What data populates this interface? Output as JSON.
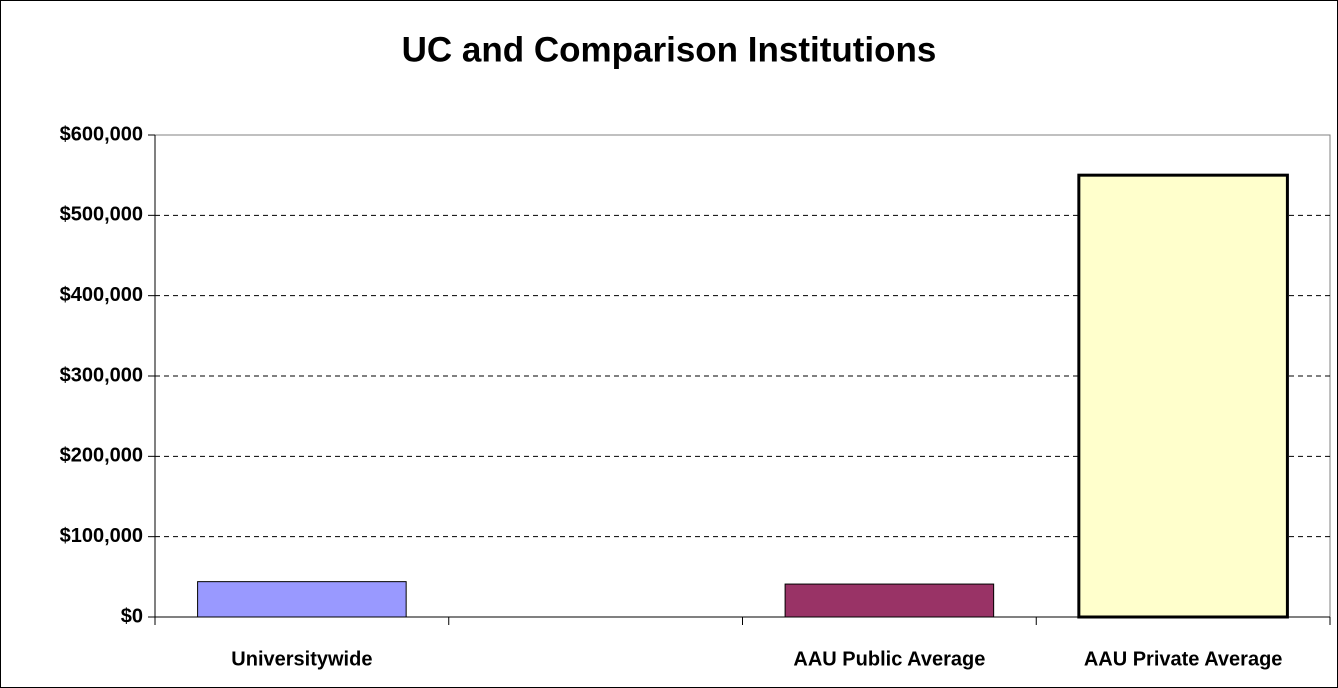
{
  "chart_data": {
    "type": "bar",
    "title": "UC and Comparison Institutions",
    "categories": [
      "Universitywide",
      null,
      "AAU Public Average",
      "AAU Private Average"
    ],
    "values": [
      44000,
      null,
      41000,
      550000
    ],
    "colors": [
      "#9999ff",
      null,
      "#993366",
      "#ffffcc"
    ],
    "ylim": [
      0,
      600000
    ],
    "yticks": [
      {
        "value": 0,
        "label": "$0"
      },
      {
        "value": 100000,
        "label": "$100,000"
      },
      {
        "value": 200000,
        "label": "$200,000"
      },
      {
        "value": 300000,
        "label": "$300,000"
      },
      {
        "value": 400000,
        "label": "$400,000"
      },
      {
        "value": 500000,
        "label": "$500,000"
      },
      {
        "value": 600000,
        "label": "$600,000"
      }
    ],
    "grid": true
  }
}
